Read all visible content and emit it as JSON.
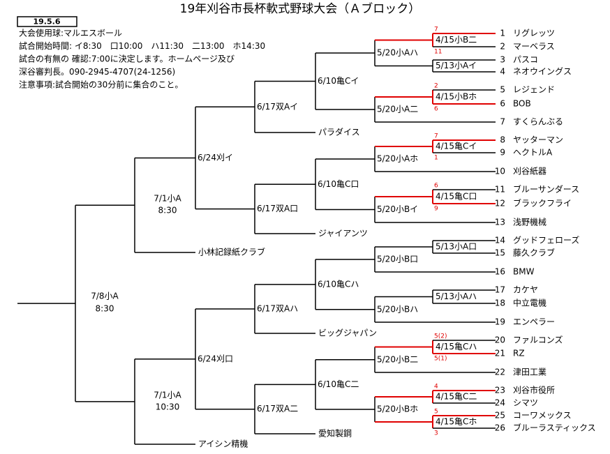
{
  "header": {
    "date": "19.5.6",
    "title": "19年刈谷市長杯軟式野球大会（Ａブロック）",
    "notes": [
      "大会使用球:マルエスボール",
      "試合開始時間: イ8:30　口10:00　ハ11:30　二13:00　ホ14:30",
      "試合の有無の 確認:7:00に決定します。ホームページ及び",
      "深谷審判長。090-2945-4707(24-1256)",
      "注意事項:試合開始の30分前に集合のこと。"
    ]
  },
  "teams": [
    {
      "number": 1,
      "name": "リグレッツ"
    },
    {
      "number": 2,
      "name": "マーベラス"
    },
    {
      "number": 3,
      "name": "パスコ"
    },
    {
      "number": 4,
      "name": "ネオウイングス"
    },
    {
      "number": 5,
      "name": "レジェンド"
    },
    {
      "number": 6,
      "name": "BOB"
    },
    {
      "number": 7,
      "name": "すくらんぶる"
    },
    {
      "number": 8,
      "name": "ヤッターマン"
    },
    {
      "number": 9,
      "name": "ヘクトルA"
    },
    {
      "number": 10,
      "name": "刈谷紙器"
    },
    {
      "number": 11,
      "name": "ブルーサンダース"
    },
    {
      "number": 12,
      "name": "ブラックフライ"
    },
    {
      "number": 13,
      "name": "浅野機械"
    },
    {
      "number": 14,
      "name": "グッドフェローズ"
    },
    {
      "number": 15,
      "name": "藤久クラブ"
    },
    {
      "number": 16,
      "name": "BMW"
    },
    {
      "number": 17,
      "name": "カケヤ"
    },
    {
      "number": 18,
      "name": "中立電機"
    },
    {
      "number": 19,
      "name": "エンペラー"
    },
    {
      "number": 20,
      "name": "ファルコンズ"
    },
    {
      "number": 21,
      "name": "RZ"
    },
    {
      "number": 22,
      "name": "津田工業"
    },
    {
      "number": 23,
      "name": "刈谷市役所"
    },
    {
      "number": 24,
      "name": "シマツ"
    },
    {
      "number": 25,
      "name": "コーワメックス"
    },
    {
      "number": 26,
      "name": "ブルーラスティックス"
    }
  ],
  "round1": [
    {
      "label": "4/15小B二",
      "scores": [
        "7",
        "11"
      ]
    },
    {
      "label": "5/13小Aイ"
    },
    {
      "label": "4/15小Bホ",
      "scores": [
        "2",
        "6"
      ]
    },
    {
      "label": "4/15亀Cイ",
      "scores": [
        "7",
        "1"
      ]
    },
    {
      "label": "4/15亀C口",
      "scores": [
        "6",
        "9"
      ]
    },
    {
      "label": "5/13小A口"
    },
    {
      "label": "5/13小Aハ"
    },
    {
      "label": "4/15亀Cハ",
      "scores": [
        "5(2)",
        "5(1)"
      ]
    },
    {
      "label": "4/15亀C二",
      "scores": [
        "4"
      ]
    },
    {
      "label": "4/15亀Cホ",
      "scores": [
        "5",
        "3"
      ]
    }
  ],
  "round2": [
    "5/20小Aハ",
    "5/20小A二",
    "5/20小Aホ",
    "5/20小Bイ",
    "5/20小B口",
    "5/20小Bハ",
    "5/20小B二",
    "5/20小Bホ"
  ],
  "round3": [
    "6/10亀Cイ",
    "6/10亀C口",
    "6/10亀Cハ",
    "6/10亀C二"
  ],
  "round4": [
    {
      "label": "6/17双Aイ",
      "bye": "パラダイス"
    },
    {
      "label": "6/17双A口",
      "bye": "ジャイアンツ"
    },
    {
      "label": "6/17双Aハ",
      "bye": "ビッグジャパン"
    },
    {
      "label": "6/17双A二",
      "bye": "愛知製鋼"
    }
  ],
  "round5": [
    "6/24刈イ",
    "6/24刈口"
  ],
  "round6": [
    {
      "label": "7/1小A",
      "time": "8:30",
      "bye": "小林記録紙クラブ"
    },
    {
      "label": "7/1小A",
      "time": "10:30",
      "bye": "アイシン精機"
    }
  ],
  "final": {
    "label": "7/8小A",
    "time": "8:30"
  }
}
